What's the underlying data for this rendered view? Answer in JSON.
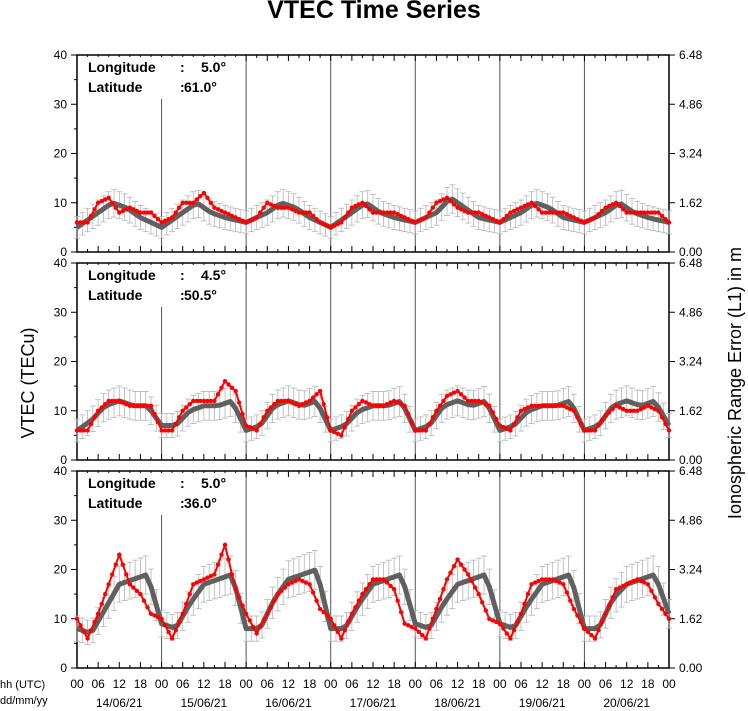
{
  "chart_data": {
    "type": "line",
    "title": "VTEC Time Series",
    "ylabel_left": "VTEC (TECu)",
    "ylabel_right": "Ionospheric Range Error (L1) in m",
    "xlabel_hours": "hh (UTC)",
    "xlabel_dates": "dd/mm/yy",
    "ylim": [
      0,
      40
    ],
    "left_ticks": [
      "0",
      "10",
      "20",
      "30",
      "40"
    ],
    "right_ticks": [
      "0.00",
      "1.62",
      "3.24",
      "4.86",
      "6.48"
    ],
    "hour_ticks": [
      "00",
      "06",
      "12",
      "18"
    ],
    "final_hour_tick": "00",
    "dates": [
      "14/06/21",
      "15/06/21",
      "16/06/21",
      "17/06/21",
      "18/06/21",
      "19/06/21",
      "20/06/21"
    ],
    "colors": {
      "measured": "#ff0000",
      "reference": "#606060",
      "error_bars": "#b4b4b4",
      "frame": "#000000"
    },
    "panels": [
      {
        "longitude_label": "Longitude",
        "longitude_value": "5.0°",
        "latitude_label": "Latitude",
        "latitude_value": "61.0°",
        "series": [
          {
            "key": "reference",
            "x_hours": [
              0,
              6,
              10,
              14,
              18,
              24,
              30,
              34,
              38,
              42,
              48,
              54,
              58,
              62,
              66,
              72,
              78,
              82,
              86,
              90,
              96,
              102,
              106,
              110,
              114,
              120,
              126,
              130,
              134,
              138,
              144,
              150,
              154,
              158,
              162,
              168
            ],
            "values": [
              5,
              8,
              10,
              9,
              7,
              5,
              8,
              10,
              8,
              7,
              6,
              8,
              10,
              9,
              7,
              5,
              8,
              10,
              8,
              7,
              6,
              8,
              11,
              9,
              7,
              6,
              8,
              10,
              9,
              7,
              6,
              8,
              10,
              8,
              7,
              6
            ]
          },
          {
            "key": "measured",
            "x_hours": [
              0,
              3,
              6,
              9,
              12,
              15,
              18,
              21,
              24,
              27,
              30,
              33,
              36,
              39,
              42,
              45,
              48,
              51,
              54,
              57,
              60,
              63,
              66,
              69,
              72,
              75,
              78,
              81,
              84,
              87,
              90,
              93,
              96,
              99,
              102,
              105,
              108,
              111,
              114,
              117,
              120,
              123,
              126,
              129,
              132,
              135,
              138,
              141,
              144,
              147,
              150,
              153,
              156,
              159,
              162,
              165,
              168
            ],
            "values": [
              6,
              6,
              10,
              11,
              8,
              9,
              8,
              8,
              6,
              7,
              10,
              10,
              12,
              9,
              8,
              7,
              6,
              7,
              10,
              9,
              9,
              8,
              8,
              6,
              5,
              6,
              9,
              10,
              8,
              8,
              8,
              7,
              6,
              7,
              10,
              11,
              9,
              8,
              8,
              7,
              6,
              8,
              9,
              10,
              8,
              8,
              8,
              7,
              6,
              7,
              9,
              10,
              8,
              8,
              8,
              8,
              6
            ]
          }
        ]
      },
      {
        "longitude_label": "Longitude",
        "longitude_value": "4.5°",
        "latitude_label": "Latitude",
        "latitude_value": "50.5°",
        "series": [
          {
            "key": "reference",
            "x_hours": [
              0,
              4,
              8,
              12,
              16,
              20,
              24,
              28,
              32,
              36,
              40,
              44,
              48,
              52,
              56,
              60,
              64,
              68,
              72,
              76,
              80,
              84,
              88,
              92,
              96,
              100,
              104,
              108,
              112,
              116,
              120,
              124,
              128,
              132,
              136,
              140,
              144,
              148,
              152,
              156,
              160,
              164,
              168
            ],
            "values": [
              6,
              8,
              11,
              12,
              11,
              11,
              7,
              7,
              10,
              11,
              11,
              12,
              6,
              7,
              11,
              12,
              11,
              12,
              6,
              7,
              10,
              11,
              11,
              12,
              6,
              7,
              11,
              12,
              11,
              12,
              6,
              7,
              10,
              11,
              11,
              12,
              6,
              7,
              11,
              12,
              11,
              12,
              7
            ]
          },
          {
            "key": "measured",
            "x_hours": [
              0,
              3,
              6,
              9,
              12,
              15,
              18,
              21,
              24,
              27,
              30,
              33,
              36,
              39,
              42,
              45,
              48,
              51,
              54,
              57,
              60,
              63,
              66,
              69,
              72,
              75,
              78,
              81,
              84,
              87,
              90,
              93,
              96,
              99,
              102,
              105,
              108,
              111,
              114,
              117,
              120,
              123,
              126,
              129,
              132,
              135,
              138,
              141,
              144,
              147,
              150,
              153,
              156,
              159,
              162,
              165,
              168
            ],
            "values": [
              6,
              6,
              10,
              12,
              12,
              11,
              11,
              11,
              6,
              6,
              10,
              12,
              12,
              12,
              16,
              14,
              7,
              6,
              10,
              12,
              12,
              11,
              12,
              14,
              6,
              5,
              10,
              12,
              11,
              11,
              12,
              11,
              6,
              6,
              10,
              13,
              14,
              12,
              12,
              11,
              7,
              6,
              10,
              11,
              11,
              11,
              11,
              10,
              6,
              6,
              9,
              11,
              10,
              10,
              11,
              10,
              6
            ]
          }
        ]
      },
      {
        "longitude_label": "Longitude",
        "longitude_value": "5.0°",
        "latitude_label": "Latitude",
        "latitude_value": "36.0°",
        "series": [
          {
            "key": "reference",
            "x_hours": [
              0,
              4,
              8,
              12,
              16,
              20,
              24,
              28,
              32,
              36,
              40,
              44,
              48,
              52,
              56,
              60,
              64,
              68,
              72,
              76,
              80,
              84,
              88,
              92,
              96,
              100,
              104,
              108,
              112,
              116,
              120,
              124,
              128,
              132,
              136,
              140,
              144,
              148,
              152,
              156,
              160,
              164,
              168
            ],
            "values": [
              8,
              7,
              12,
              17,
              18,
              19,
              9,
              8,
              13,
              17,
              18,
              19,
              8,
              8,
              14,
              18,
              19,
              20,
              8,
              8,
              13,
              17,
              18,
              19,
              9,
              8,
              13,
              17,
              18,
              19,
              9,
              8,
              13,
              17,
              18,
              19,
              8,
              8,
              14,
              17,
              18,
              19,
              11
            ]
          },
          {
            "key": "measured",
            "x_hours": [
              0,
              3,
              6,
              9,
              12,
              15,
              18,
              21,
              24,
              27,
              30,
              33,
              36,
              39,
              42,
              45,
              48,
              51,
              54,
              57,
              60,
              63,
              66,
              69,
              72,
              75,
              78,
              81,
              84,
              87,
              90,
              93,
              96,
              99,
              102,
              105,
              108,
              111,
              114,
              117,
              120,
              123,
              126,
              129,
              132,
              135,
              138,
              141,
              144,
              147,
              150,
              153,
              156,
              159,
              162,
              165,
              168
            ],
            "values": [
              10,
              6,
              11,
              17,
              23,
              17,
              15,
              11,
              10,
              6,
              11,
              17,
              18,
              19,
              25,
              16,
              11,
              7,
              11,
              15,
              17,
              18,
              17,
              12,
              10,
              6,
              11,
              15,
              18,
              18,
              16,
              9,
              8,
              6,
              12,
              18,
              22,
              19,
              15,
              10,
              9,
              6,
              11,
              17,
              18,
              18,
              17,
              12,
              8,
              6,
              11,
              16,
              17,
              18,
              17,
              13,
              10
            ]
          }
        ]
      }
    ]
  }
}
